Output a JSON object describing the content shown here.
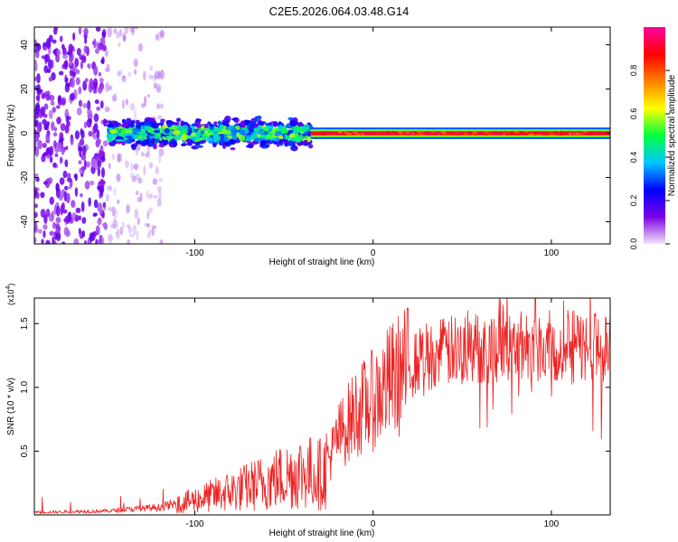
{
  "title": "C2E5.2026.064.03.48.G14",
  "chart_data": [
    {
      "type": "heatmap",
      "name": "spectrogram",
      "xlabel": "Height of straight line (km)",
      "ylabel": "Frequency (Hz)",
      "xlim": [
        -190,
        133
      ],
      "ylim": [
        -50,
        48
      ],
      "xticks": [
        -100,
        0,
        100
      ],
      "yticks": [
        -40,
        -20,
        0,
        20,
        40
      ],
      "colorbar": {
        "label": "Normalized spectral amplitude",
        "range": [
          0,
          1
        ],
        "ticks": [
          "0.0",
          "0.2",
          "0.4",
          "0.6",
          "0.8"
        ],
        "colors": [
          "#f2e6f7",
          "#7a00e6",
          "#0000ff",
          "#00c8ff",
          "#00ff40",
          "#ffff00",
          "#ff8000",
          "#ff0000",
          "#ff00a0"
        ]
      },
      "description_bands": [
        {
          "x": [
            -190,
            -118
          ],
          "freq_span": [
            -50,
            48
          ],
          "level": 0.12,
          "note": "scattered noise"
        },
        {
          "x": [
            -148,
            -35
          ],
          "freq_span": [
            -8,
            8
          ],
          "level": 0.45,
          "note": "broad signal band"
        },
        {
          "x": [
            -35,
            133
          ],
          "freq_span": [
            -1.5,
            1.5
          ],
          "level": 0.9,
          "note": "narrow strong line at 0 Hz"
        }
      ]
    },
    {
      "type": "line",
      "name": "snr",
      "xlabel": "Height of straight line (km)",
      "ylabel": "SNR (10 * v/v)",
      "y_multiplier": "(x10",
      "y_multiplier_exp": "4",
      "xlim": [
        -190,
        133
      ],
      "ylim": [
        0,
        17000
      ],
      "xticks": [
        -100,
        0,
        100
      ],
      "yticks": [
        5000,
        10000,
        15000
      ],
      "ytick_labels": [
        "0.5",
        "1.0",
        "1.5"
      ],
      "color": "#ee2222",
      "trend": {
        "x": [
          -190,
          -150,
          -120,
          -105,
          -90,
          -70,
          -50,
          -40,
          -28,
          -20,
          -10,
          0,
          10,
          20,
          30,
          50,
          70,
          90,
          110,
          133
        ],
        "y": [
          200,
          300,
          600,
          1000,
          1500,
          2200,
          3000,
          3400,
          3200,
          6000,
          8000,
          9000,
          10500,
          11500,
          12500,
          13000,
          13200,
          13300,
          13200,
          13200
        ]
      }
    }
  ]
}
